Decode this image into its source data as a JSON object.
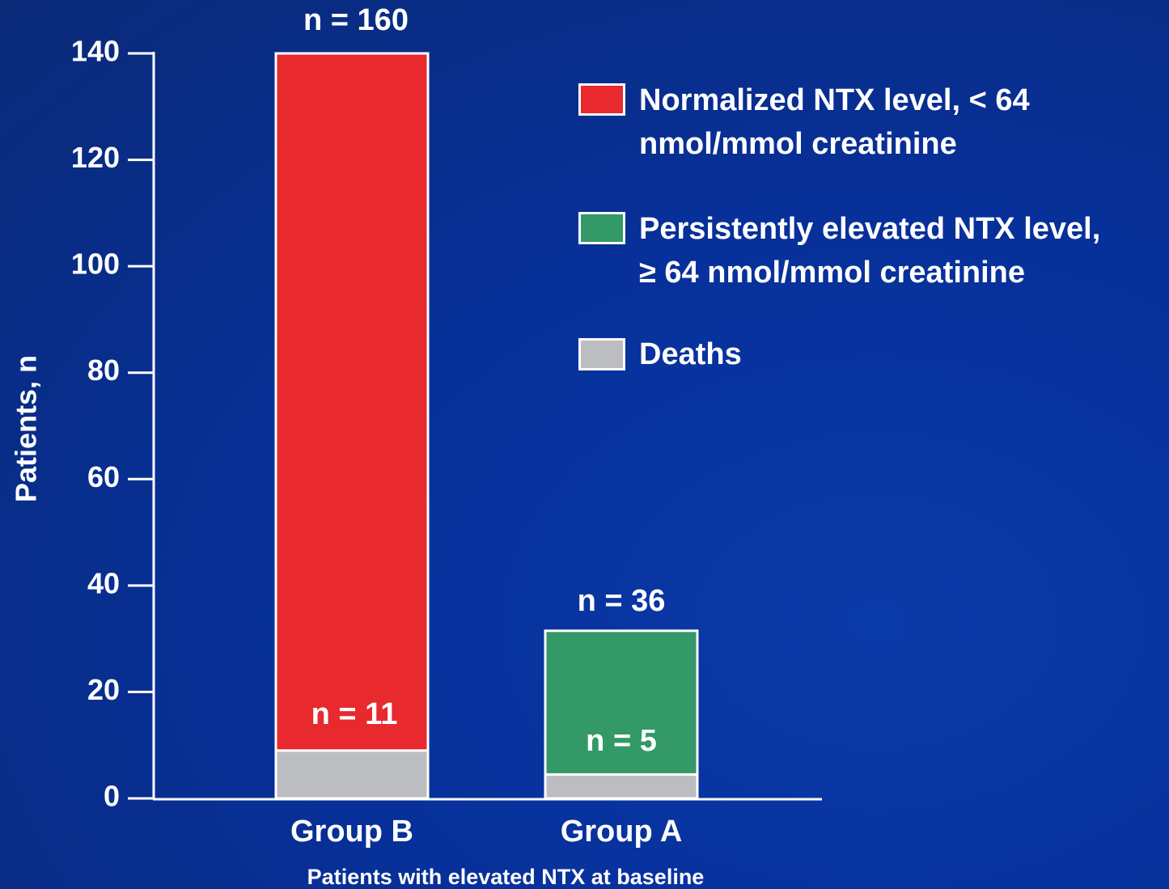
{
  "chart_data": {
    "type": "stacked_bar",
    "xlabel": "Patients with elevated NTX at baseline",
    "ylabel": "Patients, n",
    "categories": [
      "Group B",
      "Group A"
    ],
    "series": [
      {
        "name": "Normalized NTX level, < 64\nnmol/mmol creatinine",
        "color": "#e8292e",
        "values": [
          131,
          null
        ]
      },
      {
        "name": "Persistently elevated NTX level,\n≥ 64 nmol/mmol creatinine",
        "color": "#339966",
        "values": [
          null,
          27
        ]
      },
      {
        "name": "Deaths",
        "color": "#bcbdc0",
        "values": [
          9,
          4.5
        ]
      }
    ],
    "annotations": [
      "n = 160",
      "n = 11",
      "n = 36",
      "n = 5"
    ],
    "ylim": [
      0,
      140
    ],
    "yticks": [
      0,
      20,
      40,
      60,
      80,
      100,
      120,
      140
    ]
  }
}
